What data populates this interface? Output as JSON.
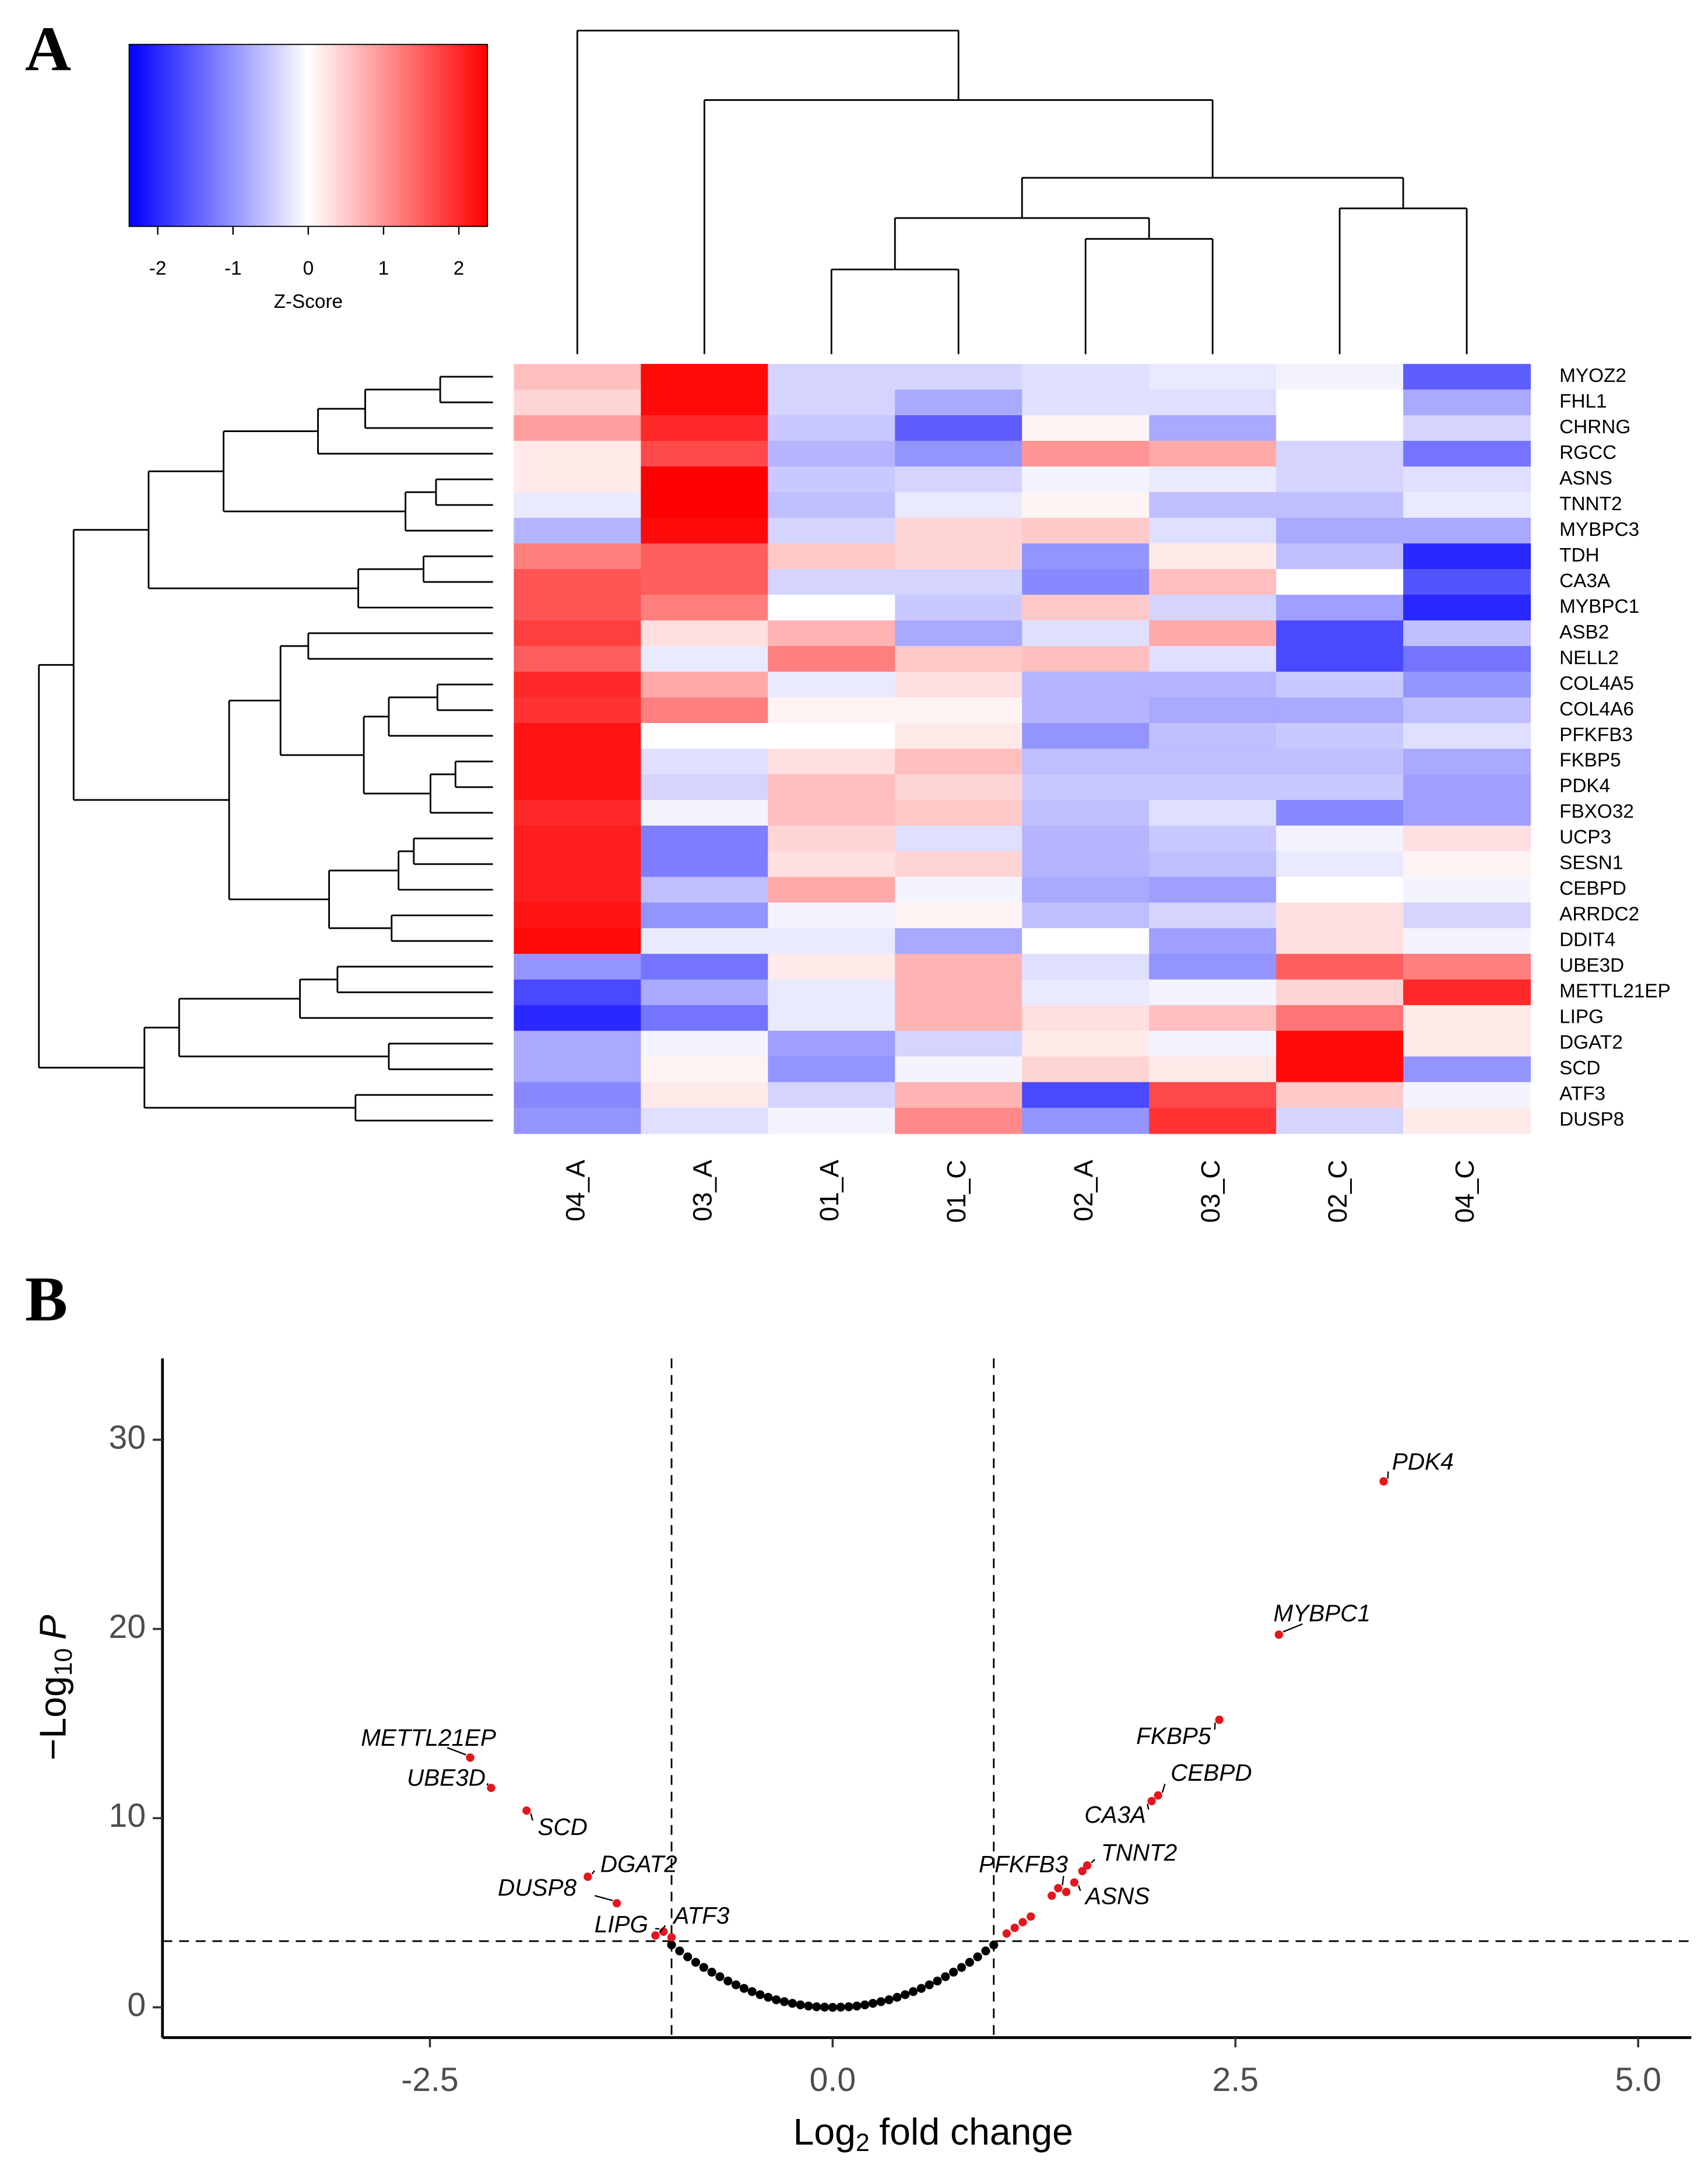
{
  "panel_labels": [
    "A",
    "B"
  ],
  "chart_data": [
    {
      "type": "heatmap",
      "rows": [
        "MYOZ2",
        "FHL1",
        "CHRNG",
        "RGCC",
        "ASNS",
        "TNNT2",
        "MYBPC3",
        "TDH",
        "CA3A",
        "MYBPC1",
        "ASB2",
        "NELL2",
        "COL4A5",
        "COL4A6",
        "PFKFB3",
        "FKBP5",
        "PDK4",
        "FBXO32",
        "UCP3",
        "SESN1",
        "CEBPD",
        "ARRDC2",
        "DDIT4",
        "UBE3D",
        "METTL21EP",
        "LIPG",
        "DGAT2",
        "SCD",
        "ATF3",
        "DUSP8"
      ],
      "columns": [
        "04_A",
        "03_A",
        "01_A",
        "01_C",
        "02_A",
        "03_C",
        "02_C",
        "04_C"
      ],
      "values": [
        [
          0.6,
          2.3,
          -0.4,
          -0.4,
          -0.3,
          -0.2,
          -0.1,
          -1.5
        ],
        [
          0.4,
          2.3,
          -0.4,
          -0.8,
          -0.3,
          -0.3,
          0,
          -0.8
        ],
        [
          0.9,
          2.0,
          -0.5,
          -1.5,
          0.1,
          -0.8,
          0,
          -0.4
        ],
        [
          0.2,
          1.7,
          -0.7,
          -1.0,
          1.0,
          0.8,
          -0.4,
          -1.3
        ],
        [
          0.2,
          2.4,
          -0.5,
          -0.4,
          -0.1,
          -0.2,
          -0.4,
          -0.3
        ],
        [
          -0.2,
          2.4,
          -0.6,
          -0.2,
          0.1,
          -0.6,
          -0.6,
          -0.2
        ],
        [
          -0.7,
          2.3,
          -0.4,
          0.4,
          0.5,
          -0.3,
          -0.8,
          -0.8
        ],
        [
          1.2,
          1.5,
          0.5,
          0.4,
          -1.0,
          0.2,
          -0.6,
          -2.0
        ],
        [
          1.6,
          1.5,
          -0.4,
          -0.4,
          -1.1,
          0.6,
          0,
          -1.6
        ],
        [
          1.6,
          1.2,
          0,
          -0.5,
          0.5,
          -0.4,
          -0.9,
          -2.0
        ],
        [
          1.8,
          0.3,
          0.7,
          -0.8,
          -0.3,
          0.8,
          -1.7,
          -0.6
        ],
        [
          1.5,
          -0.2,
          1.2,
          0.5,
          0.6,
          -0.3,
          -1.7,
          -1.3
        ],
        [
          2.0,
          0.8,
          -0.2,
          0.3,
          -0.7,
          -0.7,
          -0.5,
          -1.0
        ],
        [
          1.9,
          1.2,
          0.1,
          0.1,
          -0.7,
          -0.8,
          -0.8,
          -0.6
        ],
        [
          2.2,
          0,
          0,
          0.2,
          -1.0,
          -0.6,
          -0.5,
          -0.3
        ],
        [
          2.2,
          -0.3,
          0.3,
          0.6,
          -0.6,
          -0.6,
          -0.6,
          -0.8
        ],
        [
          2.2,
          -0.4,
          0.6,
          0.4,
          -0.5,
          -0.5,
          -0.5,
          -0.9
        ],
        [
          2.0,
          -0.1,
          0.6,
          0.5,
          -0.6,
          -0.3,
          -1.1,
          -0.9
        ],
        [
          2.1,
          -1.2,
          0.4,
          -0.3,
          -0.7,
          -0.5,
          -0.1,
          0.3
        ],
        [
          2.1,
          -1.2,
          0.3,
          0.4,
          -0.7,
          -0.6,
          -0.2,
          0.1
        ],
        [
          2.1,
          -0.6,
          0.8,
          -0.1,
          -0.8,
          -0.9,
          0,
          -0.1
        ],
        [
          2.2,
          -1.0,
          -0.1,
          0.1,
          -0.6,
          -0.4,
          0.3,
          -0.4
        ],
        [
          2.3,
          -0.2,
          -0.2,
          -0.8,
          0,
          -0.9,
          0.3,
          -0.1
        ],
        [
          -1.0,
          -1.3,
          0.2,
          0.7,
          -0.3,
          -1.0,
          1.5,
          1.2
        ],
        [
          -1.7,
          -0.8,
          -0.2,
          0.7,
          -0.2,
          -0.1,
          0.4,
          2.0
        ],
        [
          -2.0,
          -1.3,
          -0.2,
          0.7,
          0.3,
          0.6,
          1.3,
          0.2
        ],
        [
          -0.8,
          -0.1,
          -0.9,
          -0.4,
          0.2,
          -0.1,
          2.3,
          0.2
        ],
        [
          -0.8,
          0.1,
          -1.0,
          -0.1,
          0.4,
          0.2,
          2.3,
          -1.0
        ],
        [
          -1.1,
          0.2,
          -0.4,
          0.7,
          -1.7,
          1.7,
          0.5,
          -0.1
        ],
        [
          -1.0,
          -0.3,
          -0.1,
          1.1,
          -1.0,
          1.9,
          -0.4,
          0.2
        ]
      ],
      "colorscale": [
        "#0000ff",
        "#ffffff",
        "#ff0000"
      ],
      "zlim": [
        -2.38,
        2.38
      ],
      "zticks": [
        -2,
        -1,
        0,
        1,
        2
      ],
      "colorbar_label": "Z-Score"
    },
    {
      "type": "scatter",
      "xlabel": [
        "Log",
        "2",
        "fold change"
      ],
      "ylabel": [
        "−Log",
        "10",
        "P"
      ],
      "xlim": [
        -4.16,
        5.33
      ],
      "ylim": [
        -1.6,
        34.3
      ],
      "xticks": [
        -2.5,
        {
          "value": 0,
          "label": "0.0"
        },
        2.5,
        {
          "value": 5,
          "label": "5.0"
        }
      ],
      "yticks": [
        0,
        10,
        20,
        30
      ],
      "vlines": [
        -1,
        1
      ],
      "hline": 3.5,
      "series": [
        {
          "color": "#000000",
          "x": [
            -1,
            -0.95,
            -0.9,
            -0.85,
            -0.8,
            -0.75,
            -0.7,
            -0.65,
            -0.6,
            -0.55,
            -0.5,
            -0.45,
            -0.4,
            -0.35,
            -0.3,
            -0.25,
            -0.2,
            -0.15,
            -0.1,
            -0.05,
            0,
            0.05,
            0.1,
            0.15,
            0.2,
            0.25,
            0.3,
            0.35,
            0.4,
            0.45,
            0.5,
            0.55,
            0.6,
            0.65,
            0.7,
            0.75,
            0.8,
            0.85,
            0.9,
            0.95,
            1
          ],
          "y": [
            3.3,
            2.98,
            2.67,
            2.38,
            2.11,
            1.86,
            1.62,
            1.39,
            1.19,
            1.0,
            0.83,
            0.67,
            0.53,
            0.4,
            0.3,
            0.21,
            0.13,
            0.07,
            0.03,
            0.01,
            0,
            0.01,
            0.03,
            0.07,
            0.13,
            0.21,
            0.3,
            0.4,
            0.53,
            0.67,
            0.83,
            1.0,
            1.19,
            1.39,
            1.62,
            1.86,
            2.11,
            2.38,
            2.67,
            2.98,
            3.3
          ]
        },
        {
          "color": "#e3161c",
          "x": [
            3.42,
            2.77,
            2.4,
            2.02,
            1.98,
            1.58,
            1.5,
            1.4,
            -2.25,
            -2.12,
            -1.9,
            -1.52,
            -1.34,
            -1.05,
            -1.1,
            1.08,
            1.13,
            1.18,
            1.23,
            1.36,
            1.45,
            1.55,
            -1.0
          ],
          "y": [
            27.8,
            19.7,
            15.2,
            11.2,
            10.9,
            7.5,
            6.6,
            6.3,
            13.2,
            11.6,
            10.4,
            6.9,
            5.5,
            4.0,
            3.8,
            3.9,
            4.2,
            4.5,
            4.8,
            5.9,
            6.1,
            7.2,
            3.7
          ],
          "labels": [
            "PDK4",
            "MYBPC1",
            "FKBP5",
            "CEBPD",
            "CA3A",
            "TNNT2",
            "ASNS",
            "PFKFB3",
            "METTL21EP",
            "UBE3D",
            "SCD",
            "DGAT2",
            "DUSP8",
            "LIPG",
            "ATF3",
            null,
            null,
            null,
            null,
            null,
            null,
            null,
            null
          ]
        }
      ]
    }
  ]
}
